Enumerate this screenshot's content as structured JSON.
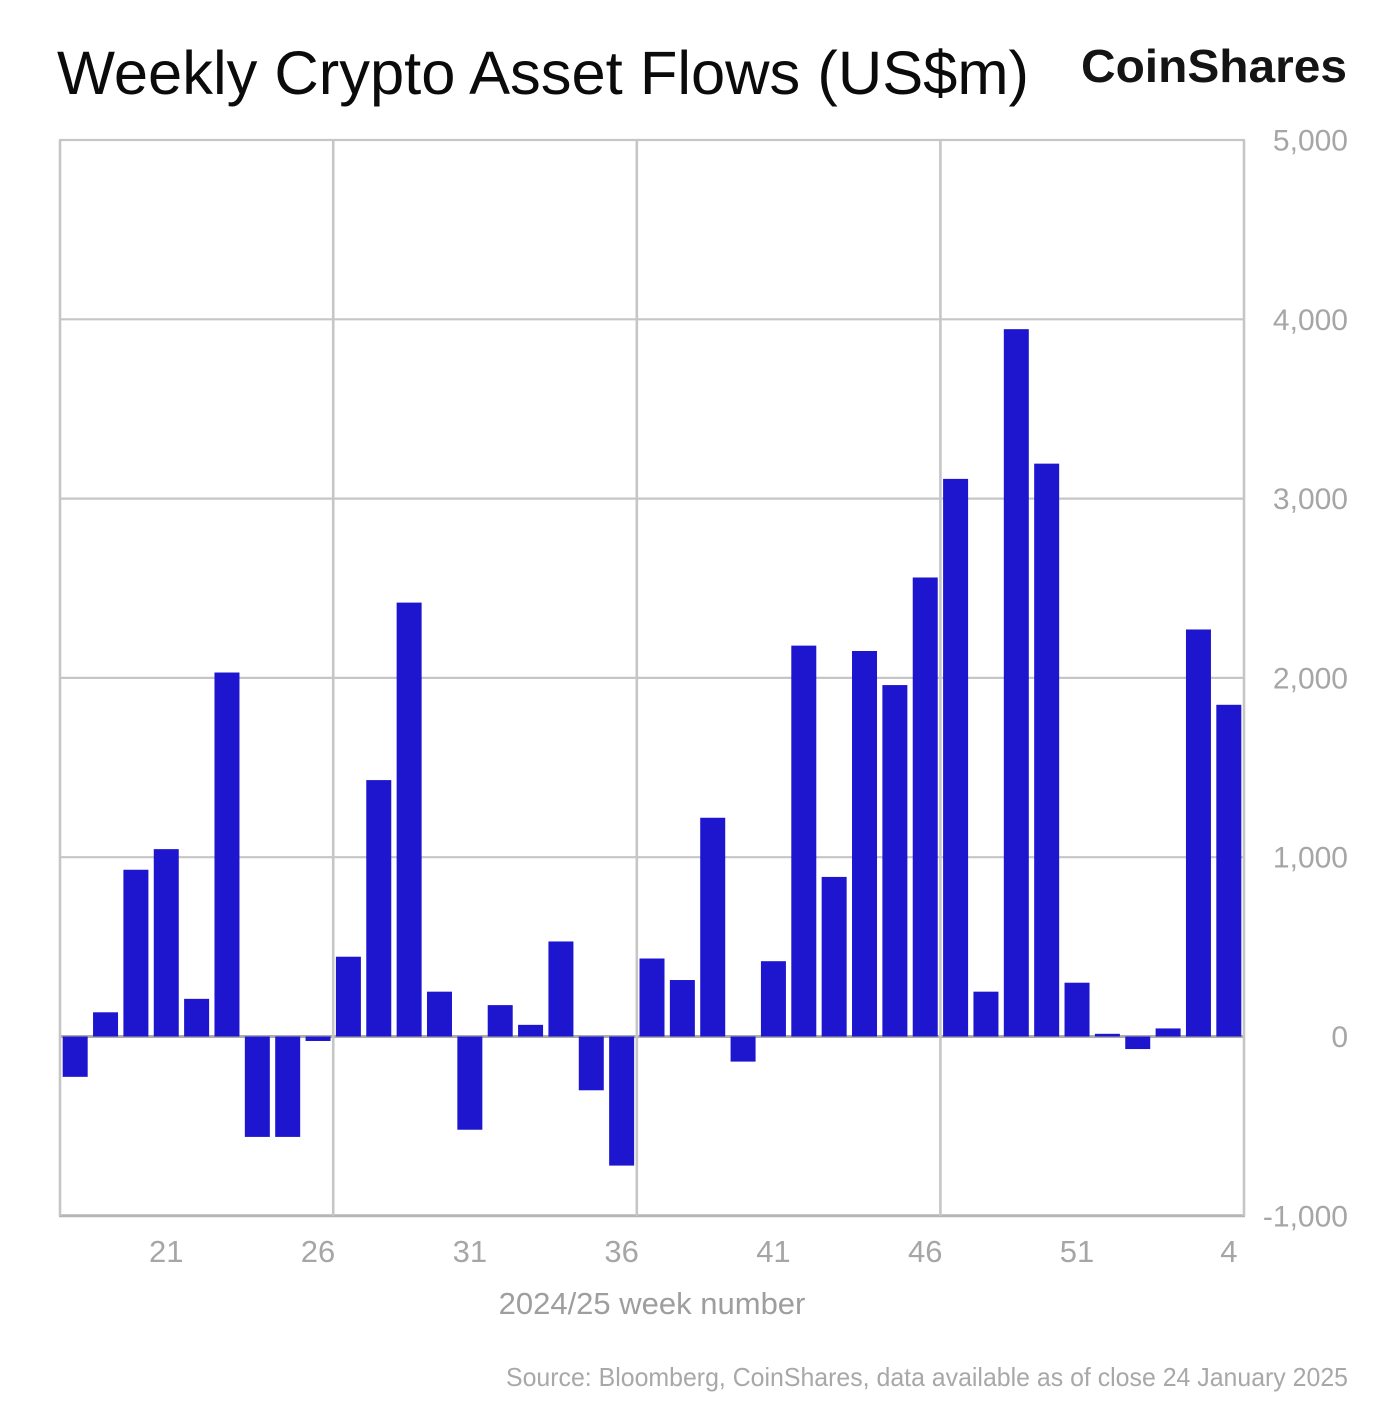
{
  "header": {
    "title": "Weekly Crypto Asset Flows (US$m)",
    "brand": "CoinShares"
  },
  "footer": {
    "source": "Source: Bloomberg, CoinShares, data available as of close 24 January 2025"
  },
  "colors": {
    "bar": "#1E15CE",
    "grid": "#c6c6c6",
    "zero_line": "#ababab",
    "bottom_axis": "#b5b5b5",
    "axis_text": "#a6a6a6",
    "title_text": "#0b0b0b",
    "source_text": "#a8a8a8"
  },
  "chart_data": {
    "type": "bar",
    "title": "Weekly Crypto Asset Flows (US$m)",
    "xlabel": "2024/25 week number",
    "ylabel": "",
    "ylim": [
      -1000,
      5000
    ],
    "grid": "on",
    "legend": "none",
    "x_weeks": [
      18,
      19,
      20,
      21,
      22,
      23,
      24,
      25,
      26,
      27,
      28,
      29,
      30,
      31,
      32,
      33,
      34,
      35,
      36,
      37,
      38,
      39,
      40,
      41,
      42,
      43,
      44,
      45,
      46,
      47,
      48,
      49,
      50,
      51,
      52,
      1,
      2,
      3,
      4
    ],
    "values": [
      -225,
      135,
      930,
      1045,
      210,
      2030,
      -560,
      -560,
      -25,
      445,
      1430,
      2420,
      250,
      -520,
      175,
      65,
      530,
      -300,
      -720,
      435,
      315,
      1220,
      -140,
      420,
      2180,
      890,
      2150,
      1960,
      2560,
      3110,
      250,
      3945,
      3195,
      300,
      15,
      -70,
      45,
      2270,
      1850
    ],
    "xticks": [
      21,
      26,
      31,
      36,
      41,
      46,
      51,
      4
    ],
    "yticks": [
      {
        "value": 5000,
        "label": "5,000"
      },
      {
        "value": 4000,
        "label": "4,000"
      },
      {
        "value": 3000,
        "label": "3,000"
      },
      {
        "value": 2000,
        "label": "2,000"
      },
      {
        "value": 1000,
        "label": "1,000"
      },
      {
        "value": 0,
        "label": "0"
      },
      {
        "value": -1000,
        "label": "-1,000"
      }
    ],
    "vertical_grid_after_weeks": [
      26,
      36,
      46
    ]
  }
}
